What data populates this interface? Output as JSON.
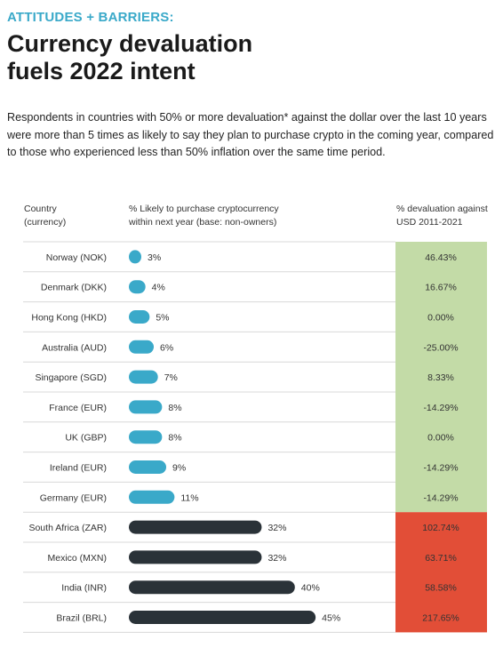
{
  "header": {
    "eyebrow": "ATTITUDES + BARRIERS:",
    "title_line1": "Currency devaluation",
    "title_line2": "fuels 2022 intent",
    "intro": "Respondents in countries with 50% or more devaluation* against the dollar over the last 10 years were more than 5 times as likely to say they plan to purchase crypto in the coming year, compared to those who experienced less than 50% inflation over the same time period."
  },
  "columns": {
    "country_line1": "Country",
    "country_line2": "(currency)",
    "likely_line1": "% Likely to purchase cryptocurrency",
    "likely_line2": "within next year (base: non-owners)",
    "deval_line1": "% devaluation against",
    "deval_line2": "USD 2011-2021"
  },
  "colors": {
    "low_bar": "#3aa9c9",
    "high_bar": "#2a3238",
    "green_cell": "#c3dba7",
    "red_cell": "#e24e37",
    "accent": "#3aa9c9"
  },
  "chart_data": {
    "type": "bar",
    "orientation": "horizontal",
    "categories": [
      "Norway (NOK)",
      "Denmark (DKK)",
      "Hong Kong (HKD)",
      "Australia (AUD)",
      "Singapore (SGD)",
      "France (EUR)",
      "UK (GBP)",
      "Ireland (EUR)",
      "Germany (EUR)",
      "South Africa (ZAR)",
      "Mexico (MXN)",
      "India (INR)",
      "Brazil (BRL)"
    ],
    "values": [
      3,
      4,
      5,
      6,
      7,
      8,
      8,
      9,
      11,
      32,
      32,
      40,
      45
    ],
    "value_labels": [
      "3%",
      "4%",
      "5%",
      "6%",
      "7%",
      "8%",
      "8%",
      "9%",
      "11%",
      "32%",
      "32%",
      "40%",
      "45%"
    ],
    "devaluation": [
      46.43,
      16.67,
      0.0,
      -25.0,
      8.33,
      -14.29,
      0.0,
      -14.29,
      -14.29,
      102.74,
      63.71,
      58.58,
      217.65
    ],
    "devaluation_labels": [
      "46.43%",
      "16.67%",
      "0.00%",
      "-25.00%",
      "8.33%",
      "-14.29%",
      "0.00%",
      "-14.29%",
      "-14.29%",
      "102.74%",
      "63.71%",
      "58.58%",
      "217.65%"
    ],
    "group": [
      "low",
      "low",
      "low",
      "low",
      "low",
      "low",
      "low",
      "low",
      "low",
      "high",
      "high",
      "high",
      "high"
    ]
  }
}
